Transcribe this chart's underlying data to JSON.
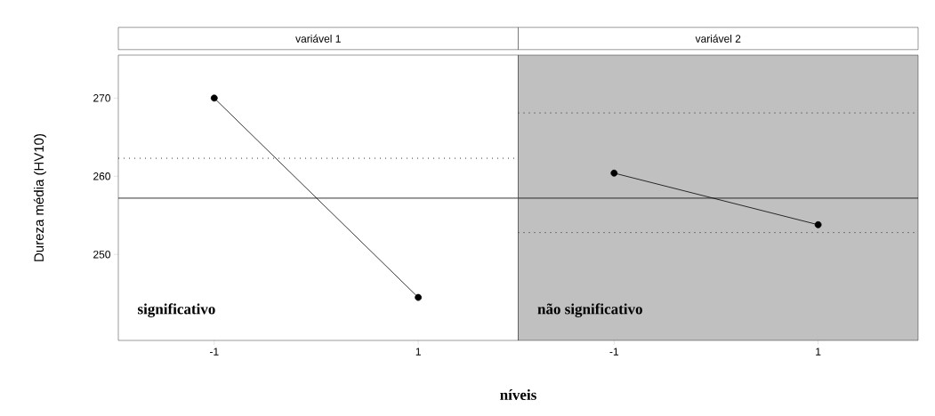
{
  "chart_data": [
    {
      "type": "line",
      "title": "variável 1",
      "ylabel": "Dureza média (HV10)",
      "xlabel": "níveis",
      "categories": [
        "-1",
        "1"
      ],
      "values": [
        270,
        244.5
      ],
      "color": "#000000",
      "marker": "circle",
      "line_style": "solid",
      "ylim": [
        239,
        275.5
      ],
      "yticks": [
        250,
        260,
        270
      ],
      "ref_lines": [
        {
          "axis": "y",
          "value": 257.2,
          "line_style": "solid"
        },
        {
          "axis": "y",
          "value": 262.3,
          "line_style": "dotted"
        }
      ],
      "annotations": [
        "significativo"
      ]
    },
    {
      "type": "line",
      "title": "variável 2",
      "categories": [
        "-1",
        "1"
      ],
      "values": [
        260.4,
        253.8
      ],
      "color": "#000000",
      "marker": "circle",
      "line_style": "solid",
      "ylim": [
        239,
        275.5
      ],
      "yticks": [
        250,
        260,
        270
      ],
      "tick_labels": "x",
      "bands": [
        {
          "axis": "y",
          "from": 239,
          "to": 275.5,
          "color": "#c0c0c0"
        }
      ],
      "ref_lines": [
        {
          "axis": "y",
          "value": 257.2,
          "line_style": "solid"
        },
        {
          "axis": "y",
          "value": 268.1,
          "line_style": "dotted"
        },
        {
          "axis": "y",
          "value": 252.8,
          "line_style": "dotted"
        }
      ],
      "annotations": [
        "não significativo"
      ]
    }
  ]
}
